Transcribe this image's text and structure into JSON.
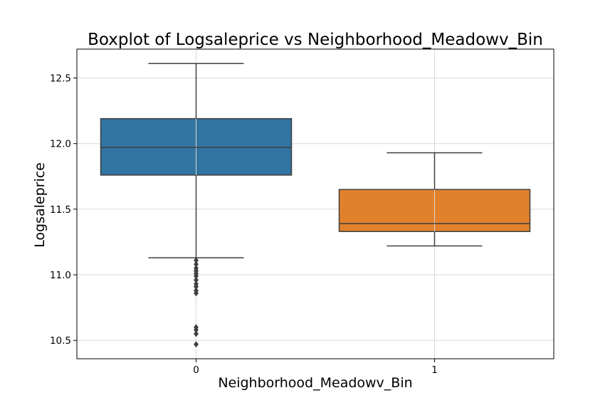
{
  "chart_data": {
    "type": "box",
    "title": "Boxplot of Logsaleprice vs Neighborhood_Meadowv_Bin",
    "xlabel": "Neighborhood_Meadowv_Bin",
    "ylabel": "Logsaleprice",
    "categories": [
      "0",
      "1"
    ],
    "ylim": [
      10.36,
      12.72
    ],
    "yticks": [
      10.5,
      11.0,
      11.5,
      12.0,
      12.5
    ],
    "ytick_labels": [
      "10.5",
      "11.0",
      "11.5",
      "12.0",
      "12.5"
    ],
    "grid": true,
    "boxes": [
      {
        "category": "0",
        "color": "#3274a1",
        "whisker_low": 11.13,
        "q1": 11.76,
        "median": 11.97,
        "q3": 12.19,
        "whisker_high": 12.61,
        "outliers": [
          11.11,
          11.08,
          11.05,
          11.03,
          11.01,
          10.99,
          10.96,
          10.93,
          10.91,
          10.88,
          10.86,
          10.6,
          10.58,
          10.55,
          10.47
        ]
      },
      {
        "category": "1",
        "color": "#e1812c",
        "whisker_low": 11.22,
        "q1": 11.33,
        "median": 11.39,
        "q3": 11.65,
        "whisker_high": 11.93,
        "outliers": []
      }
    ]
  }
}
